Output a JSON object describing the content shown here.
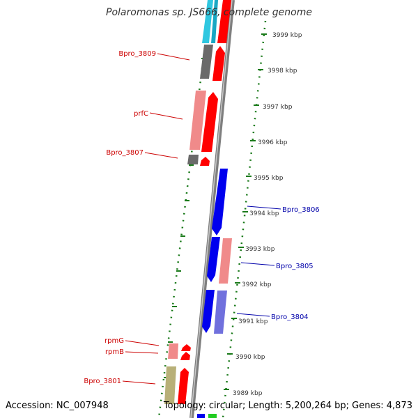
{
  "title": "Polaromonas sp. JS666, complete genome",
  "footer": {
    "accession": "Accession: NC_007948",
    "stats": "Topology: circular; Length: 5,200,264 bp; Genes: 4,873"
  },
  "colors": {
    "backbone": "#808080",
    "dots": "#1a7a1a",
    "tick": "#1a7a1a",
    "label_forward": "#cc0000",
    "label_reverse": "#0000aa",
    "kbp_text": "#333333"
  },
  "kbp_labels": [
    "3999 kbp",
    "3998 kbp",
    "3997 kbp",
    "3996 kbp",
    "3995 kbp",
    "3994 kbp",
    "3993 kbp",
    "3992 kbp",
    "3991 kbp",
    "3990 kbp",
    "3989 kbp"
  ],
  "forward_labels": [
    "Bpro_3809",
    "prfC",
    "Bpro_3807",
    "rpmG",
    "rpmB",
    "Bpro_3801"
  ],
  "reverse_labels": [
    "Bpro_3806",
    "Bpro_3805",
    "Bpro_3804"
  ]
}
